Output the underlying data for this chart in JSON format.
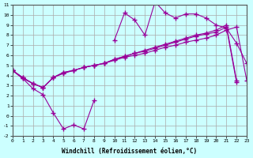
{
  "x": [
    0,
    1,
    2,
    3,
    4,
    5,
    6,
    7,
    8,
    9,
    10,
    11,
    12,
    13,
    14,
    15,
    16,
    17,
    18,
    19,
    20,
    21,
    22,
    23
  ],
  "line1": [
    4.5,
    3.7,
    2.7,
    2.1,
    0.3,
    -1.3,
    -0.9,
    -1.3,
    1.5,
    null,
    null,
    null,
    null,
    null,
    null,
    null,
    null,
    null,
    null,
    null,
    null,
    null,
    null,
    null
  ],
  "line2": [
    4.5,
    null,
    null,
    null,
    null,
    null,
    null,
    null,
    null,
    null,
    7.5,
    10.2,
    9.5,
    8.0,
    11.3,
    10.2,
    9.7,
    10.1,
    10.1,
    9.7,
    9.0,
    8.7,
    7.2,
    5.2
  ],
  "line3": [
    4.5,
    3.8,
    3.2,
    2.8,
    3.8,
    4.3,
    4.5,
    4.8,
    5.0,
    5.2,
    5.5,
    5.8,
    6.0,
    6.2,
    6.5,
    6.8,
    7.0,
    7.3,
    7.5,
    7.7,
    8.0,
    8.5,
    8.8,
    3.5
  ],
  "line4": [
    4.5,
    3.8,
    3.2,
    2.8,
    3.8,
    4.3,
    4.5,
    4.8,
    5.0,
    5.2,
    5.6,
    5.9,
    6.2,
    6.5,
    6.8,
    7.1,
    7.4,
    7.7,
    8.0,
    8.2,
    8.5,
    9.0,
    3.5,
    null
  ],
  "line5": [
    4.5,
    3.7,
    3.2,
    2.8,
    3.8,
    4.2,
    4.5,
    4.8,
    5.0,
    5.2,
    5.6,
    5.9,
    6.2,
    6.4,
    6.7,
    7.0,
    7.3,
    7.6,
    7.9,
    8.1,
    8.3,
    8.8,
    3.3,
    null
  ],
  "xlim": [
    0,
    23
  ],
  "ylim": [
    -2,
    11
  ],
  "xticks": [
    0,
    1,
    2,
    3,
    4,
    5,
    6,
    7,
    8,
    9,
    10,
    11,
    12,
    13,
    14,
    15,
    16,
    17,
    18,
    19,
    20,
    21,
    22,
    23
  ],
  "yticks": [
    -2,
    -1,
    0,
    1,
    2,
    3,
    4,
    5,
    6,
    7,
    8,
    9,
    10,
    11
  ],
  "xlabel": "Windchill (Refroidissement éolien,°C)",
  "line_color": "#990099",
  "bg_color": "#ccffff",
  "grid_color": "#aaaaaa"
}
